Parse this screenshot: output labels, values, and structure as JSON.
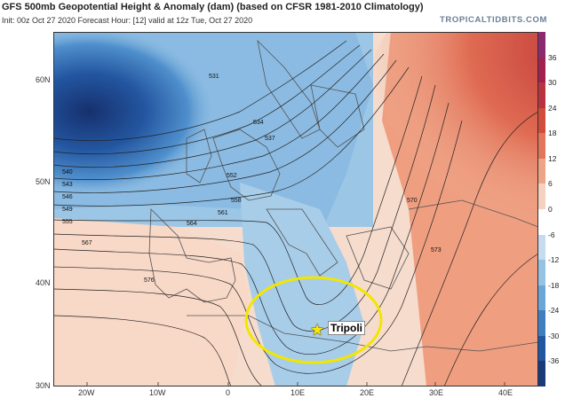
{
  "header": {
    "title": "GFS 500mb Geopotential Height & Anomaly (dam) (based on CFSR 1981-2010 Climatology)",
    "subtitle": "Init: 00z Oct 27 2020   Forecast Hour: [12]   valid at 12z Tue, Oct 27 2020",
    "brand": "TROPICALTIDBITS.COM"
  },
  "axes": {
    "latitudes": [
      "60N",
      "50N",
      "40N",
      "30N"
    ],
    "longitudes": [
      "20W",
      "10W",
      "0",
      "10E",
      "20E",
      "30E",
      "40E"
    ]
  },
  "colorbar": {
    "labels": [
      "36",
      "30",
      "24",
      "18",
      "12",
      "6",
      "0",
      "-6",
      "-12",
      "-18",
      "-24",
      "-30",
      "-36"
    ],
    "colors": [
      "#8b2a6e",
      "#a02050",
      "#b83240",
      "#d24c3c",
      "#e2765a",
      "#eca587",
      "#f5d2c0",
      "#ffffff",
      "#c6dbef",
      "#96c2e4",
      "#6aa6d6",
      "#3f7fbf",
      "#2356a0",
      "#1a3b7a"
    ]
  },
  "contour_labels": [
    "531",
    "534",
    "537",
    "540",
    "543",
    "546",
    "549",
    "552",
    "555",
    "558",
    "561",
    "564",
    "567",
    "570",
    "573",
    "576"
  ],
  "annotation": {
    "label": "Tripoli",
    "marker": "star-icon",
    "highlight": "yellow-ellipse"
  }
}
